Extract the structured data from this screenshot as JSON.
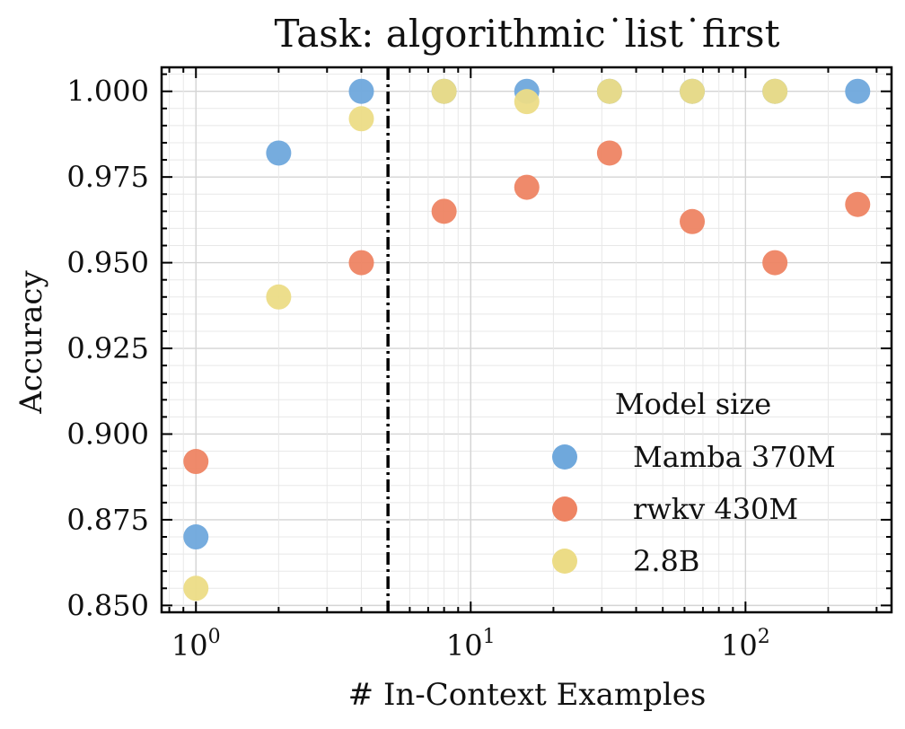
{
  "chart_data": {
    "type": "scatter",
    "title": "Task: algorithmic˙list˙first",
    "xlabel": "# In-Context Examples",
    "ylabel": "Accuracy",
    "x_scale": "log",
    "xlim": [
      0.75,
      340
    ],
    "ylim": [
      0.848,
      1.007
    ],
    "x_ticks": [
      {
        "value": 1,
        "base": "10",
        "exp": "0"
      },
      {
        "value": 10,
        "base": "10",
        "exp": "1"
      },
      {
        "value": 100,
        "base": "10",
        "exp": "2"
      }
    ],
    "y_ticks": [
      {
        "value": 0.85,
        "label": "0.850"
      },
      {
        "value": 0.875,
        "label": "0.875"
      },
      {
        "value": 0.9,
        "label": "0.900"
      },
      {
        "value": 0.925,
        "label": "0.925"
      },
      {
        "value": 0.95,
        "label": "0.950"
      },
      {
        "value": 0.975,
        "label": "0.975"
      },
      {
        "value": 1.0,
        "label": "1.000"
      }
    ],
    "grid": true,
    "vertical_line": {
      "x": 5,
      "style": "dash-dot",
      "color": "#000000"
    },
    "legend": {
      "title": "Model size",
      "placement": "lower-right"
    },
    "series": [
      {
        "name": "Mamba 370M",
        "color": "#6fa8dc",
        "points": [
          [
            1,
            0.87
          ],
          [
            2,
            0.982
          ],
          [
            4,
            1.0
          ],
          [
            8,
            1.0
          ],
          [
            16,
            1.0
          ],
          [
            32,
            1.0
          ],
          [
            64,
            1.0
          ],
          [
            128,
            1.0
          ],
          [
            256,
            1.0
          ]
        ]
      },
      {
        "name": "rwkv 430M",
        "color": "#ee8463",
        "points": [
          [
            1,
            0.892
          ],
          [
            4,
            0.95
          ],
          [
            8,
            0.965
          ],
          [
            16,
            0.972
          ],
          [
            32,
            0.982
          ],
          [
            64,
            0.962
          ],
          [
            128,
            0.95
          ],
          [
            256,
            0.967
          ]
        ]
      },
      {
        "name": "2.8B",
        "color": "#ecdc86",
        "points": [
          [
            1,
            0.855
          ],
          [
            2,
            0.94
          ],
          [
            4,
            0.992
          ],
          [
            8,
            1.0
          ],
          [
            16,
            0.997
          ],
          [
            32,
            1.0
          ],
          [
            64,
            1.0
          ],
          [
            128,
            1.0
          ]
        ]
      }
    ]
  }
}
